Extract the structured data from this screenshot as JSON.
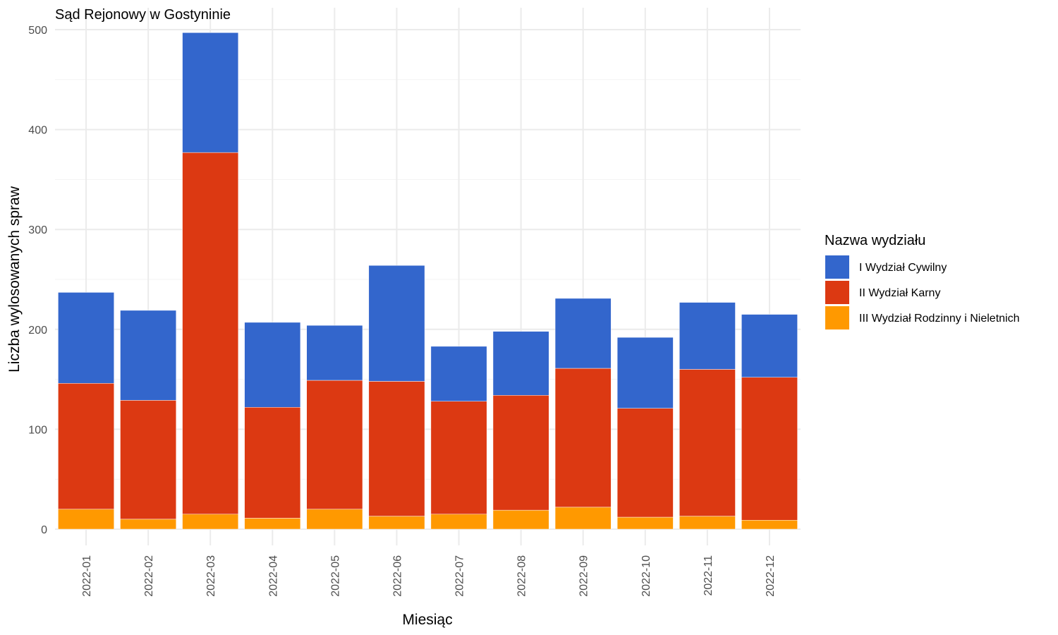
{
  "chart_data": {
    "type": "bar",
    "stacked": true,
    "title": "Sąd Rejonowy w Gostyninie",
    "xlabel": "Miesiąc",
    "ylabel": "Liczba wylosowanych spraw",
    "ylim": [
      0,
      500
    ],
    "yticks": [
      0,
      100,
      200,
      300,
      400,
      500
    ],
    "grid": true,
    "legend": {
      "title": "Nazwa wydziału",
      "position": "right"
    },
    "categories": [
      "2022-01",
      "2022-02",
      "2022-03",
      "2022-04",
      "2022-05",
      "2022-06",
      "2022-07",
      "2022-08",
      "2022-09",
      "2022-10",
      "2022-11",
      "2022-12"
    ],
    "series": [
      {
        "name": "III Wydział Rodzinny i Nieletnich",
        "color": "#FF9900",
        "values": [
          20,
          10,
          15,
          11,
          20,
          13,
          15,
          19,
          22,
          12,
          13,
          9
        ]
      },
      {
        "name": "II Wydział Karny",
        "color": "#DC3912",
        "values": [
          126,
          119,
          362,
          111,
          129,
          135,
          113,
          115,
          139,
          109,
          147,
          143
        ]
      },
      {
        "name": "I Wydział Cywilny",
        "color": "#3366CC",
        "values": [
          91,
          90,
          120,
          85,
          55,
          116,
          55,
          64,
          70,
          71,
          67,
          63
        ]
      }
    ],
    "legend_order": [
      "I Wydział Cywilny",
      "II Wydział Karny",
      "III Wydział Rodzinny i Nieletnich"
    ]
  }
}
